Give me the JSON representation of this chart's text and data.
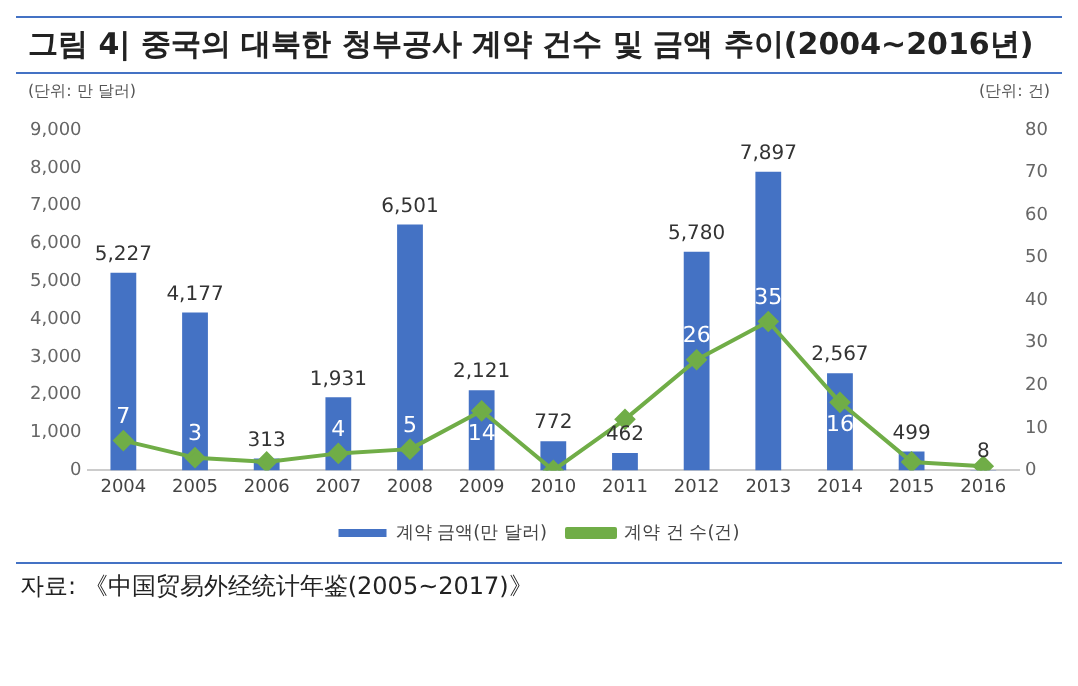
{
  "chart_data": {
    "type": "bar",
    "title": "그림 4| 중국의 대북한 청부공사 계약 건수 및 금액 추이(2004~2016년)",
    "ylabel": "(단위: 만 달러)",
    "y2label": "(단위: 건)",
    "categories": [
      "2004",
      "2005",
      "2006",
      "2007",
      "2008",
      "2009",
      "2010",
      "2011",
      "2012",
      "2013",
      "2014",
      "2015",
      "2016"
    ],
    "series": [
      {
        "name": "계약 금액(만 달러)",
        "color": "#4472c4",
        "values": [
          5227,
          4177,
          313,
          1931,
          6501,
          2121,
          772,
          462,
          5780,
          7897,
          2567,
          499,
          8
        ],
        "value_labels": [
          "5,227",
          "4,177",
          "313",
          "1,931",
          "6,501",
          "2,121",
          "772",
          "462",
          "5,780",
          "7,897",
          "2,567",
          "499",
          "8"
        ]
      },
      {
        "name": "계약 건 수(건)",
        "type": "line",
        "axis": "y2",
        "color": "#70ad47",
        "values": [
          7,
          3,
          2,
          4,
          5,
          14,
          0,
          12,
          26,
          35,
          16,
          2,
          1
        ],
        "value_labels": [
          "7",
          "3",
          null,
          "4",
          "5",
          "14",
          null,
          null,
          "26",
          "35",
          "16",
          null,
          null
        ]
      }
    ],
    "ylim": [
      0,
      9000
    ],
    "yticks": [
      {
        "value": 0,
        "label": "0"
      },
      {
        "value": 1000,
        "label": "1,000"
      },
      {
        "value": 2000,
        "label": "2,000"
      },
      {
        "value": 3000,
        "label": "3,000"
      },
      {
        "value": 4000,
        "label": "4,000"
      },
      {
        "value": 5000,
        "label": "5,000"
      },
      {
        "value": 6000,
        "label": "6,000"
      },
      {
        "value": 7000,
        "label": "7,000"
      },
      {
        "value": 8000,
        "label": "8,000"
      },
      {
        "value": 9000,
        "label": "9,000"
      }
    ],
    "y2lim": [
      0,
      80
    ],
    "y2ticks": [
      0,
      10,
      20,
      30,
      40,
      50,
      60,
      70,
      80
    ],
    "grid": false,
    "legend": "bottom",
    "marker": "diamond",
    "annotations": [
      "자료: 《中国贸易外经统计年鉴(2005~2017)》"
    ]
  }
}
